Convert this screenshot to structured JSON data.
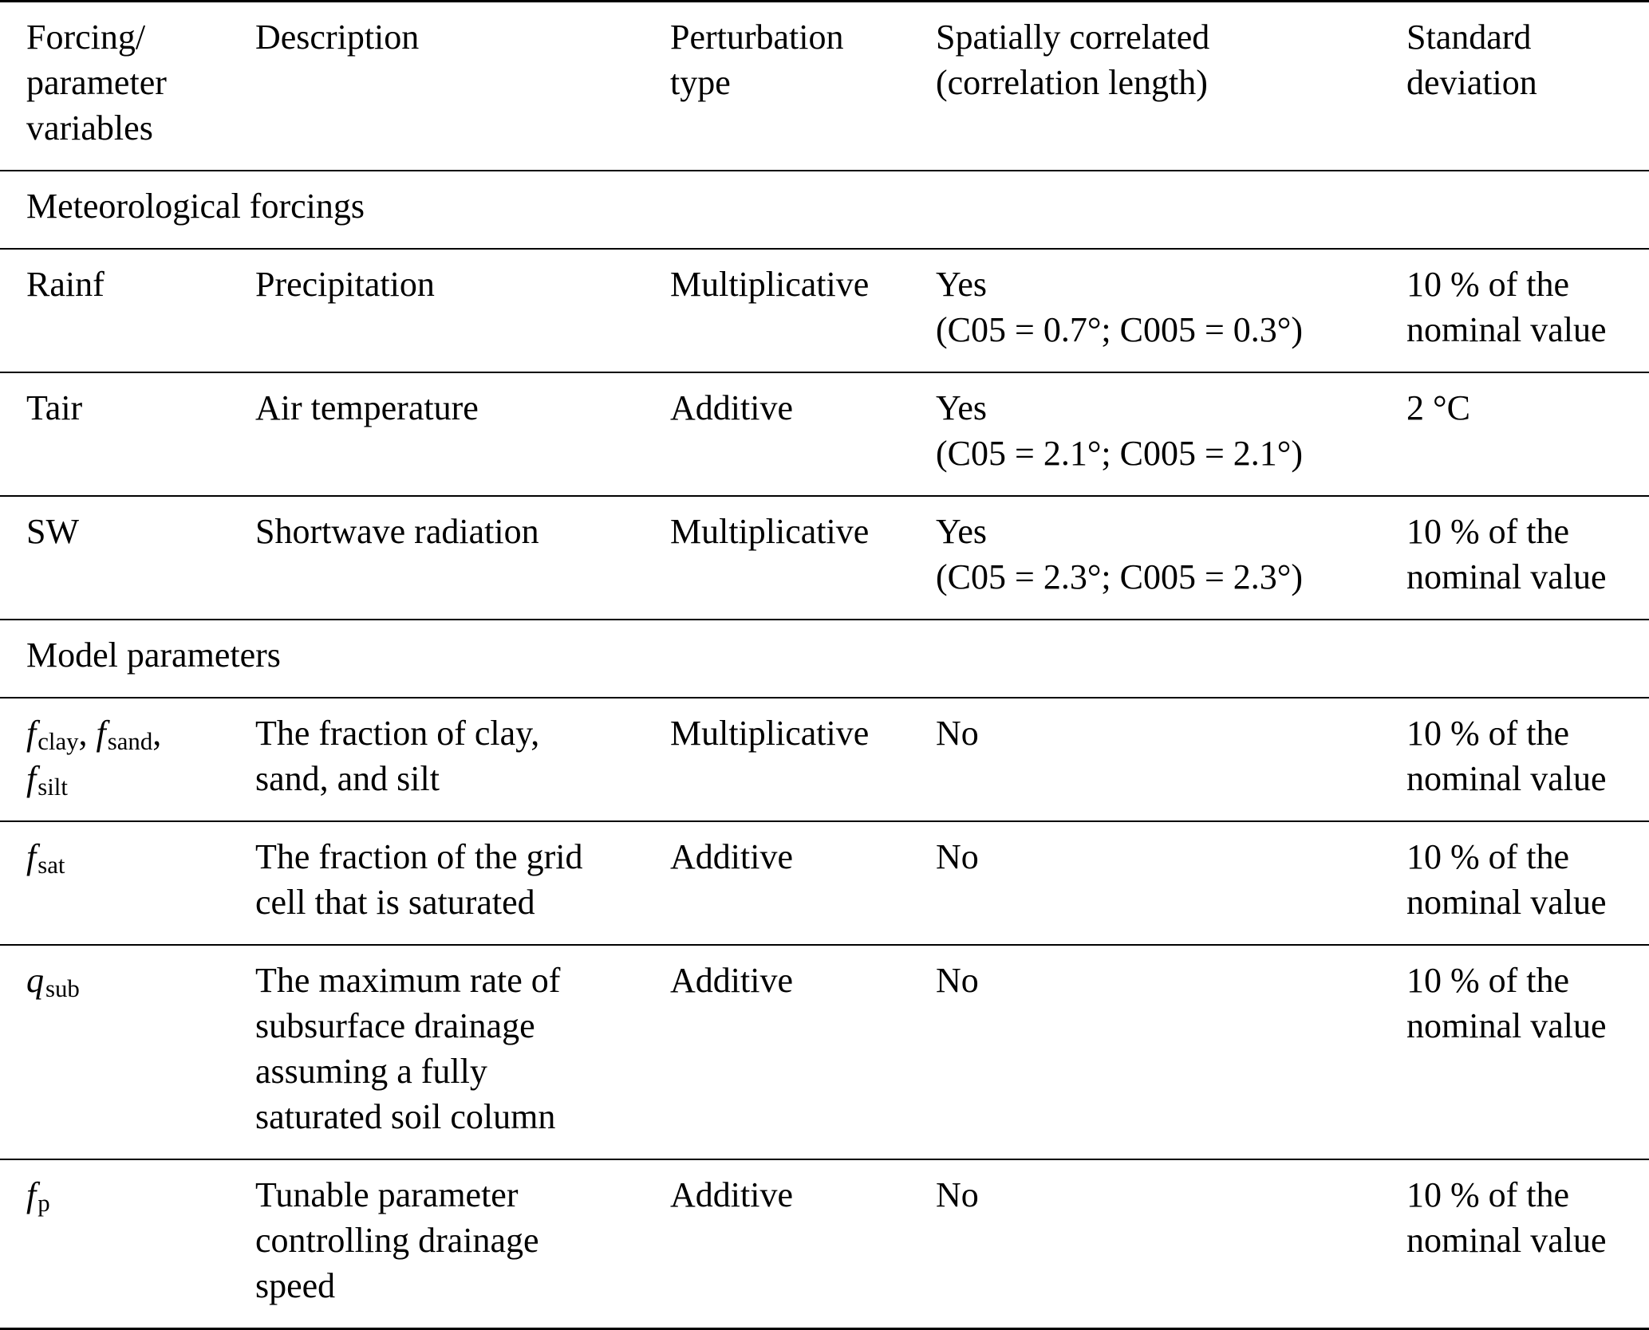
{
  "colors": {
    "background": "#ffffff",
    "text": "#000000",
    "rules": "#000000"
  },
  "table": {
    "headers": [
      "Forcing/\nparameter\nvariables",
      "Description",
      "Perturbation\ntype",
      "Spatially correlated\n(correlation length)",
      "Standard\ndeviation"
    ],
    "rows": [
      {
        "type": "section",
        "label": "Meteorological forcings"
      },
      {
        "type": "data",
        "variable": [
          {
            "t": "text",
            "v": "Rainf"
          }
        ],
        "description": "Precipitation",
        "perturbation_type": "Multiplicative",
        "spatially_correlated": "Yes\n(C05 = 0.7°; C005 = 0.3°)",
        "standard_deviation": "10 % of the\nnominal value"
      },
      {
        "type": "data",
        "variable": [
          {
            "t": "text",
            "v": "Tair"
          }
        ],
        "description": "Air temperature",
        "perturbation_type": "Additive",
        "spatially_correlated": "Yes\n(C05 = 2.1°; C005 = 2.1°)",
        "standard_deviation": "2 °C"
      },
      {
        "type": "data",
        "variable": [
          {
            "t": "text",
            "v": "SW"
          }
        ],
        "description": "Shortwave radiation",
        "perturbation_type": "Multiplicative",
        "spatially_correlated": "Yes\n(C05 = 2.3°; C005 = 2.3°)",
        "standard_deviation": "10 % of the\nnominal value"
      },
      {
        "type": "section",
        "label": "Model parameters"
      },
      {
        "type": "data",
        "variable": [
          {
            "t": "var",
            "base": "f",
            "sub": "clay"
          },
          {
            "t": "text",
            "v": ", "
          },
          {
            "t": "var",
            "base": "f",
            "sub": "sand"
          },
          {
            "t": "text",
            "v": ",\n"
          },
          {
            "t": "var",
            "base": "f",
            "sub": "silt"
          }
        ],
        "description": "The fraction of clay,\nsand, and silt",
        "perturbation_type": "Multiplicative",
        "spatially_correlated": "No",
        "standard_deviation": "10 % of the\nnominal value"
      },
      {
        "type": "data",
        "variable": [
          {
            "t": "var",
            "base": "f",
            "sub": "sat"
          }
        ],
        "description": "The fraction of the grid\ncell that is saturated",
        "perturbation_type": "Additive",
        "spatially_correlated": "No",
        "standard_deviation": "10 % of the\nnominal value"
      },
      {
        "type": "data",
        "variable": [
          {
            "t": "var",
            "base": "q",
            "sub": "sub"
          }
        ],
        "description": "The maximum rate of\nsubsurface drainage\nassuming a fully\nsaturated soil column",
        "perturbation_type": "Additive",
        "spatially_correlated": "No",
        "standard_deviation": "10 % of the\nnominal value"
      },
      {
        "type": "data",
        "variable": [
          {
            "t": "var",
            "base": "f",
            "sub": "p"
          }
        ],
        "description": "Tunable parameter\ncontrolling drainage\nspeed",
        "perturbation_type": "Additive",
        "spatially_correlated": "No",
        "standard_deviation": "10 % of the\nnominal value"
      }
    ]
  }
}
